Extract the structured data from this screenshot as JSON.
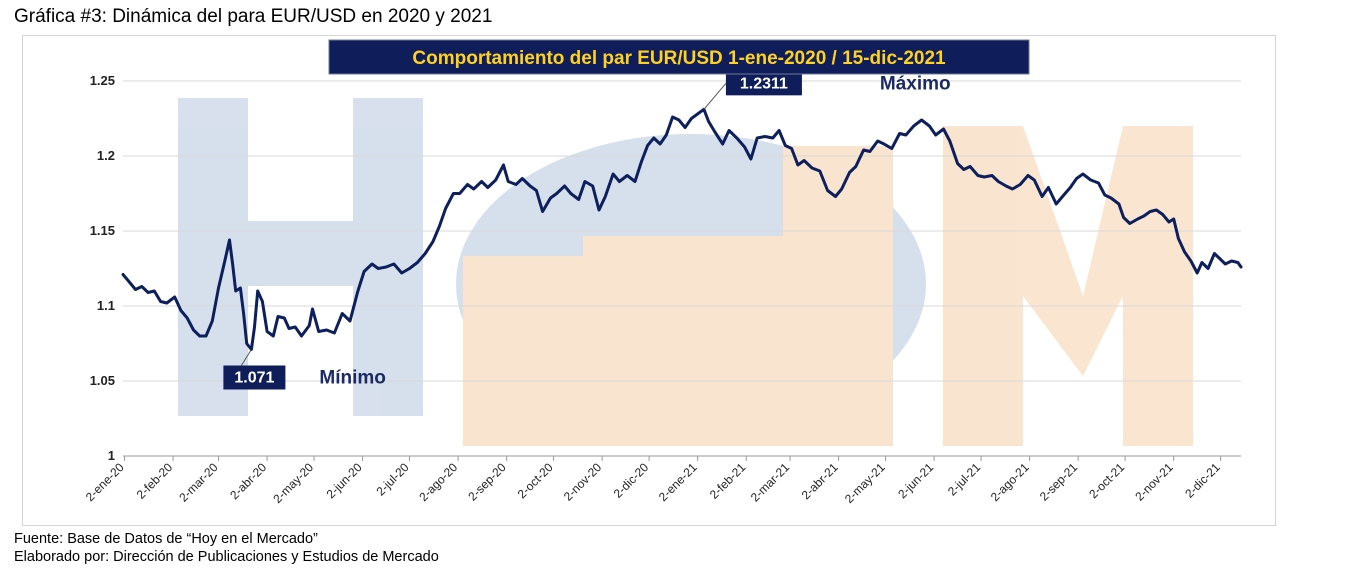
{
  "caption": "Gráfica #3: Dinámica del para EUR/USD en 2020 y 2021",
  "footer": {
    "source": "Fuente: Base de Datos de “Hoy en el Mercado”",
    "credit": "Elaborado por: Dirección de Publicaciones y Estudios de Mercado"
  },
  "watermark": {
    "letters": [
      "H",
      "M"
    ]
  },
  "colors": {
    "line": "#0d1f5c",
    "title_bg": "#0f1d5a",
    "title_text": "#ffd21f",
    "label_bg": "#0f1d5a",
    "label_text": "#ffffff",
    "annotation_text": "#1b2a66",
    "grid": "#d9d9d9",
    "watermark_blue": "#c9d6e6",
    "watermark_orange": "#f7dcc0"
  },
  "chart_data": {
    "type": "line",
    "title": "Comportamiento del par EUR/USD  1-ene-2020 / 15-dic-2021",
    "xlabel": "",
    "ylabel": "",
    "ylim": [
      1,
      1.25
    ],
    "grid": true,
    "y_ticks": [
      "1",
      "1.05",
      "1.1",
      "1.15",
      "1.2",
      "1.25"
    ],
    "y_tick_values": [
      1,
      1.05,
      1.1,
      1.15,
      1.2,
      1.25
    ],
    "x_ticks": [
      "2-ene-20",
      "2-feb-20",
      "2-mar-20",
      "2-abr-20",
      "2-may-20",
      "2-jun-20",
      "2-jul-20",
      "2-ago-20",
      "2-sep-20",
      "2-oct-20",
      "2-nov-20",
      "2-dic-20",
      "2-ene-21",
      "2-feb-21",
      "2-mar-21",
      "2-abr-21",
      "2-may-21",
      "2-jun-21",
      "2-jul-21",
      "2-ago-21",
      "2-sep-21",
      "2-oct-21",
      "2-nov-21",
      "2-dic-21"
    ],
    "x_tick_dates": [
      "2020-01-02",
      "2020-02-02",
      "2020-03-02",
      "2020-04-02",
      "2020-05-02",
      "2020-06-02",
      "2020-07-02",
      "2020-08-02",
      "2020-09-02",
      "2020-10-02",
      "2020-11-02",
      "2020-12-02",
      "2021-01-02",
      "2021-02-02",
      "2021-03-02",
      "2021-04-02",
      "2021-05-02",
      "2021-06-02",
      "2021-07-02",
      "2021-08-02",
      "2021-09-02",
      "2021-10-02",
      "2021-11-02",
      "2021-12-02"
    ],
    "x_range": [
      "2020-01-01",
      "2021-12-15"
    ],
    "series": [
      {
        "values": [
          [
            "2020-01-01",
            1.121
          ],
          [
            "2020-01-05",
            1.116
          ],
          [
            "2020-01-09",
            1.111
          ],
          [
            "2020-01-13",
            1.113
          ],
          [
            "2020-01-17",
            1.109
          ],
          [
            "2020-01-21",
            1.11
          ],
          [
            "2020-01-25",
            1.103
          ],
          [
            "2020-01-29",
            1.102
          ],
          [
            "2020-02-03",
            1.106
          ],
          [
            "2020-02-07",
            1.097
          ],
          [
            "2020-02-11",
            1.092
          ],
          [
            "2020-02-15",
            1.084
          ],
          [
            "2020-02-19",
            1.08
          ],
          [
            "2020-02-23",
            1.08
          ],
          [
            "2020-02-27",
            1.09
          ],
          [
            "2020-03-02",
            1.112
          ],
          [
            "2020-03-06",
            1.13
          ],
          [
            "2020-03-09",
            1.144
          ],
          [
            "2020-03-11",
            1.128
          ],
          [
            "2020-03-13",
            1.11
          ],
          [
            "2020-03-16",
            1.112
          ],
          [
            "2020-03-18",
            1.095
          ],
          [
            "2020-03-20",
            1.075
          ],
          [
            "2020-03-23",
            1.071
          ],
          [
            "2020-03-25",
            1.086
          ],
          [
            "2020-03-27",
            1.11
          ],
          [
            "2020-03-30",
            1.103
          ],
          [
            "2020-04-02",
            1.083
          ],
          [
            "2020-04-06",
            1.08
          ],
          [
            "2020-04-09",
            1.093
          ],
          [
            "2020-04-13",
            1.092
          ],
          [
            "2020-04-16",
            1.085
          ],
          [
            "2020-04-20",
            1.086
          ],
          [
            "2020-04-24",
            1.08
          ],
          [
            "2020-04-29",
            1.087
          ],
          [
            "2020-05-01",
            1.098
          ],
          [
            "2020-05-05",
            1.083
          ],
          [
            "2020-05-10",
            1.084
          ],
          [
            "2020-05-15",
            1.082
          ],
          [
            "2020-05-20",
            1.095
          ],
          [
            "2020-05-25",
            1.09
          ],
          [
            "2020-05-30",
            1.11
          ],
          [
            "2020-06-03",
            1.123
          ],
          [
            "2020-06-08",
            1.128
          ],
          [
            "2020-06-12",
            1.125
          ],
          [
            "2020-06-17",
            1.126
          ],
          [
            "2020-06-22",
            1.128
          ],
          [
            "2020-06-27",
            1.122
          ],
          [
            "2020-07-02",
            1.125
          ],
          [
            "2020-07-07",
            1.129
          ],
          [
            "2020-07-12",
            1.135
          ],
          [
            "2020-07-17",
            1.143
          ],
          [
            "2020-07-21",
            1.153
          ],
          [
            "2020-07-25",
            1.165
          ],
          [
            "2020-07-30",
            1.175
          ],
          [
            "2020-08-03",
            1.175
          ],
          [
            "2020-08-08",
            1.181
          ],
          [
            "2020-08-12",
            1.178
          ],
          [
            "2020-08-17",
            1.183
          ],
          [
            "2020-08-21",
            1.179
          ],
          [
            "2020-08-26",
            1.184
          ],
          [
            "2020-08-31",
            1.194
          ],
          [
            "2020-09-03",
            1.183
          ],
          [
            "2020-09-08",
            1.181
          ],
          [
            "2020-09-12",
            1.185
          ],
          [
            "2020-09-17",
            1.18
          ],
          [
            "2020-09-21",
            1.177
          ],
          [
            "2020-09-25",
            1.163
          ],
          [
            "2020-09-30",
            1.172
          ],
          [
            "2020-10-04",
            1.175
          ],
          [
            "2020-10-09",
            1.18
          ],
          [
            "2020-10-13",
            1.175
          ],
          [
            "2020-10-18",
            1.171
          ],
          [
            "2020-10-22",
            1.183
          ],
          [
            "2020-10-27",
            1.18
          ],
          [
            "2020-10-31",
            1.164
          ],
          [
            "2020-11-04",
            1.173
          ],
          [
            "2020-11-09",
            1.188
          ],
          [
            "2020-11-13",
            1.183
          ],
          [
            "2020-11-18",
            1.187
          ],
          [
            "2020-11-23",
            1.183
          ],
          [
            "2020-11-27",
            1.196
          ],
          [
            "2020-12-01",
            1.207
          ],
          [
            "2020-12-05",
            1.212
          ],
          [
            "2020-12-09",
            1.208
          ],
          [
            "2020-12-13",
            1.214
          ],
          [
            "2020-12-17",
            1.226
          ],
          [
            "2020-12-21",
            1.224
          ],
          [
            "2020-12-25",
            1.219
          ],
          [
            "2020-12-29",
            1.225
          ],
          [
            "2021-01-06",
            1.2311
          ],
          [
            "2021-01-09",
            1.223
          ],
          [
            "2021-01-13",
            1.216
          ],
          [
            "2021-01-18",
            1.208
          ],
          [
            "2021-01-22",
            1.217
          ],
          [
            "2021-01-27",
            1.212
          ],
          [
            "2021-02-01",
            1.206
          ],
          [
            "2021-02-05",
            1.198
          ],
          [
            "2021-02-09",
            1.212
          ],
          [
            "2021-02-14",
            1.213
          ],
          [
            "2021-02-19",
            1.212
          ],
          [
            "2021-02-23",
            1.217
          ],
          [
            "2021-02-27",
            1.207
          ],
          [
            "2021-03-03",
            1.205
          ],
          [
            "2021-03-07",
            1.194
          ],
          [
            "2021-03-11",
            1.197
          ],
          [
            "2021-03-16",
            1.192
          ],
          [
            "2021-03-21",
            1.19
          ],
          [
            "2021-03-26",
            1.177
          ],
          [
            "2021-03-31",
            1.173
          ],
          [
            "2021-04-04",
            1.178
          ],
          [
            "2021-04-09",
            1.189
          ],
          [
            "2021-04-13",
            1.193
          ],
          [
            "2021-04-18",
            1.204
          ],
          [
            "2021-04-22",
            1.203
          ],
          [
            "2021-04-27",
            1.21
          ],
          [
            "2021-05-01",
            1.208
          ],
          [
            "2021-05-06",
            1.205
          ],
          [
            "2021-05-11",
            1.215
          ],
          [
            "2021-05-15",
            1.214
          ],
          [
            "2021-05-20",
            1.22
          ],
          [
            "2021-05-25",
            1.224
          ],
          [
            "2021-05-30",
            1.22
          ],
          [
            "2021-06-03",
            1.214
          ],
          [
            "2021-06-08",
            1.218
          ],
          [
            "2021-06-12",
            1.21
          ],
          [
            "2021-06-17",
            1.195
          ],
          [
            "2021-06-21",
            1.191
          ],
          [
            "2021-06-25",
            1.193
          ],
          [
            "2021-06-30",
            1.187
          ],
          [
            "2021-07-04",
            1.186
          ],
          [
            "2021-07-09",
            1.187
          ],
          [
            "2021-07-13",
            1.183
          ],
          [
            "2021-07-18",
            1.18
          ],
          [
            "2021-07-22",
            1.178
          ],
          [
            "2021-07-27",
            1.181
          ],
          [
            "2021-08-01",
            1.187
          ],
          [
            "2021-08-05",
            1.184
          ],
          [
            "2021-08-10",
            1.173
          ],
          [
            "2021-08-14",
            1.179
          ],
          [
            "2021-08-19",
            1.168
          ],
          [
            "2021-08-23",
            1.173
          ],
          [
            "2021-08-28",
            1.179
          ],
          [
            "2021-09-01",
            1.185
          ],
          [
            "2021-09-05",
            1.188
          ],
          [
            "2021-09-10",
            1.184
          ],
          [
            "2021-09-15",
            1.182
          ],
          [
            "2021-09-19",
            1.174
          ],
          [
            "2021-09-23",
            1.172
          ],
          [
            "2021-09-28",
            1.168
          ],
          [
            "2021-10-01",
            1.159
          ],
          [
            "2021-10-05",
            1.155
          ],
          [
            "2021-10-10",
            1.158
          ],
          [
            "2021-10-14",
            1.16
          ],
          [
            "2021-10-18",
            1.163
          ],
          [
            "2021-10-22",
            1.164
          ],
          [
            "2021-10-26",
            1.161
          ],
          [
            "2021-10-30",
            1.156
          ],
          [
            "2021-11-02",
            1.158
          ],
          [
            "2021-11-05",
            1.145
          ],
          [
            "2021-11-09",
            1.136
          ],
          [
            "2021-11-13",
            1.13
          ],
          [
            "2021-11-17",
            1.122
          ],
          [
            "2021-11-20",
            1.129
          ],
          [
            "2021-11-24",
            1.125
          ],
          [
            "2021-11-28",
            1.135
          ],
          [
            "2021-12-01",
            1.132
          ],
          [
            "2021-12-05",
            1.128
          ],
          [
            "2021-12-09",
            1.13
          ],
          [
            "2021-12-13",
            1.129
          ],
          [
            "2021-12-15",
            1.126
          ]
        ]
      }
    ],
    "annotations": [
      {
        "label": "1.071",
        "date": "2020-03-23",
        "value": 1.071,
        "text": "Mínimo"
      },
      {
        "label": "1.2311",
        "date": "2021-01-06",
        "value": 1.2311,
        "text": "Máximo"
      }
    ]
  }
}
